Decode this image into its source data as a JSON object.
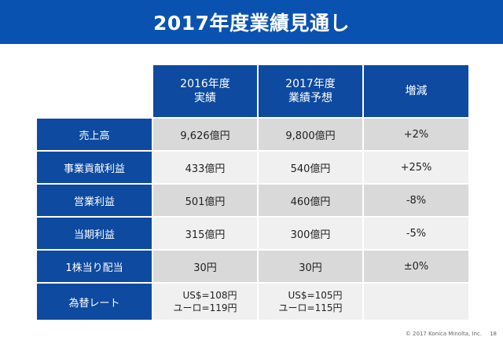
{
  "title": "2017年度業績見通し",
  "table": {
    "headers": [
      [
        "2016年度",
        "実績"
      ],
      [
        "2017年度",
        "業績予想"
      ],
      [
        "増減"
      ]
    ],
    "rows": [
      {
        "label": "売上高",
        "v2016": "9,626億円",
        "v2017": "9,800億円",
        "change": "+2%"
      },
      {
        "label": "事業貢献利益",
        "v2016": "433億円",
        "v2017": "540億円",
        "change": "+25%"
      },
      {
        "label": "営業利益",
        "v2016": "501億円",
        "v2017": "460億円",
        "change": "-8%"
      },
      {
        "label": "当期利益",
        "v2016": "315億円",
        "v2017": "300億円",
        "change": "-5%"
      },
      {
        "label": "1株当り配当",
        "v2016": "30円",
        "v2017": "30円",
        "change": "±0%"
      }
    ],
    "fx": {
      "label": "為替レート",
      "v2016": [
        "US$=108円",
        "ユーロ=119円"
      ],
      "v2017": [
        "US$=105円",
        "ユーロ=115円"
      ],
      "change": ""
    }
  },
  "footer": {
    "copyright": "© 2017 Konica Minolta, Inc.",
    "page": "18"
  }
}
